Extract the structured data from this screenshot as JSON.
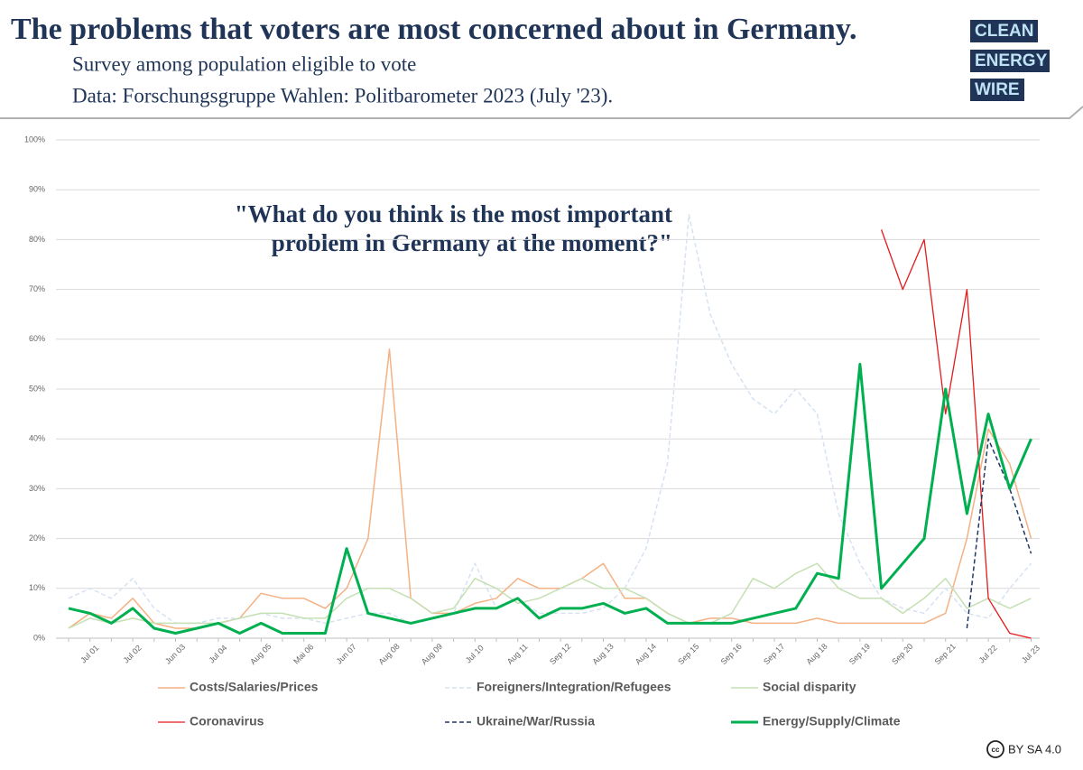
{
  "chart_data": {
    "type": "line",
    "title": "The problems that voters are most concerned about in Germany.",
    "subtitle": "Survey among population eligible to vote",
    "source": "Data: Forschungsgruppe Wahlen: Politbarometer 2023 (July '23).",
    "annotation": [
      "\"What do you think is the most important",
      "problem in Germany at the moment?\""
    ],
    "categories": [
      null,
      "Jul 01",
      null,
      "Jul 02",
      null,
      "Jun 03",
      null,
      "Jul 04",
      null,
      "Aug 05",
      null,
      "Mai 06",
      null,
      "Jun 07",
      null,
      "Aug 08",
      null,
      "Aug 09",
      null,
      "Jul 10",
      null,
      "Aug 11",
      null,
      "Sep 12",
      null,
      "Aug 13",
      null,
      "Aug 14",
      null,
      "Sep 15",
      null,
      "Sep 16",
      null,
      "Sep 17",
      null,
      "Aug 18",
      null,
      "Sep 19",
      null,
      "Sep 20",
      null,
      "Sep 21",
      null,
      "Jul 22",
      null,
      "Jul 23"
    ],
    "ylim": [
      0,
      100
    ],
    "yticks": [
      {
        "value": 0,
        "label": "0%"
      },
      {
        "value": 10,
        "label": "10%"
      },
      {
        "value": 20,
        "label": "20%"
      },
      {
        "value": 30,
        "label": "30%"
      },
      {
        "value": 40,
        "label": "40%"
      },
      {
        "value": 50,
        "label": "50%"
      },
      {
        "value": 60,
        "label": "60%"
      },
      {
        "value": 70,
        "label": "70%"
      },
      {
        "value": 80,
        "label": "80%"
      },
      {
        "value": 90,
        "label": "90%"
      },
      {
        "value": 100,
        "label": "100%"
      }
    ],
    "grid": true,
    "legend": "bottom",
    "series": [
      {
        "name": "Costs/Salaries/Prices",
        "color": "#f4b183",
        "dash": false,
        "width": 1.5,
        "values": [
          2,
          5,
          4,
          8,
          3,
          2,
          2,
          3,
          4,
          9,
          8,
          8,
          6,
          10,
          20,
          58,
          8,
          5,
          5,
          7,
          8,
          12,
          10,
          10,
          12,
          15,
          8,
          8,
          5,
          3,
          4,
          4,
          3,
          3,
          3,
          4,
          3,
          3,
          3,
          3,
          3,
          5,
          20,
          42,
          35,
          20
        ]
      },
      {
        "name": "Foreigners/Integration/Refugees",
        "color": "#d6e2f2",
        "dash": true,
        "width": 1.5,
        "values": [
          8,
          10,
          8,
          12,
          6,
          3,
          3,
          4,
          4,
          5,
          4,
          4,
          3,
          4,
          5,
          5,
          3,
          4,
          5,
          15,
          6,
          8,
          5,
          5,
          5,
          6,
          10,
          18,
          35,
          85,
          65,
          55,
          48,
          45,
          50,
          45,
          25,
          15,
          8,
          6,
          5,
          10,
          5,
          4,
          10,
          15
        ]
      },
      {
        "name": "Social disparity",
        "color": "#c5e0b4",
        "dash": false,
        "width": 1.5,
        "values": [
          2,
          4,
          3,
          4,
          3,
          3,
          3,
          3,
          4,
          5,
          5,
          4,
          4,
          8,
          10,
          10,
          8,
          5,
          6,
          12,
          10,
          7,
          8,
          10,
          12,
          10,
          10,
          8,
          5,
          3,
          3,
          5,
          12,
          10,
          13,
          15,
          10,
          8,
          8,
          5,
          8,
          12,
          6,
          8,
          6,
          8
        ]
      },
      {
        "name": "Coronavirus",
        "color": "#e41a1c",
        "dash": false,
        "width": 1.3,
        "values": [
          null,
          null,
          null,
          null,
          null,
          null,
          null,
          null,
          null,
          null,
          null,
          null,
          null,
          null,
          null,
          null,
          null,
          null,
          null,
          null,
          null,
          null,
          null,
          null,
          null,
          null,
          null,
          null,
          null,
          null,
          null,
          null,
          null,
          null,
          null,
          null,
          null,
          null,
          82,
          70,
          80,
          45,
          70,
          8,
          1,
          0
        ]
      },
      {
        "name": "Ukraine/War/Russia",
        "color": "#203864",
        "dash": true,
        "width": 1.5,
        "values": [
          null,
          null,
          null,
          null,
          null,
          null,
          null,
          null,
          null,
          null,
          null,
          null,
          null,
          null,
          null,
          null,
          null,
          null,
          null,
          null,
          null,
          null,
          null,
          null,
          null,
          null,
          null,
          null,
          null,
          null,
          null,
          null,
          null,
          null,
          null,
          null,
          null,
          null,
          null,
          null,
          null,
          null,
          2,
          40,
          30,
          17
        ]
      },
      {
        "name": "Energy/Supply/Climate",
        "color": "#00b050",
        "dash": false,
        "width": 3,
        "values": [
          6,
          5,
          3,
          6,
          2,
          1,
          2,
          3,
          1,
          3,
          1,
          1,
          1,
          18,
          5,
          4,
          3,
          4,
          5,
          6,
          6,
          8,
          4,
          6,
          6,
          7,
          5,
          6,
          3,
          3,
          3,
          3,
          4,
          5,
          6,
          13,
          12,
          55,
          10,
          15,
          20,
          50,
          25,
          45,
          30,
          40
        ]
      }
    ]
  },
  "logo": [
    "CLEAN",
    "ENERGY",
    "WIRE"
  ],
  "license": "BY SA 4.0"
}
